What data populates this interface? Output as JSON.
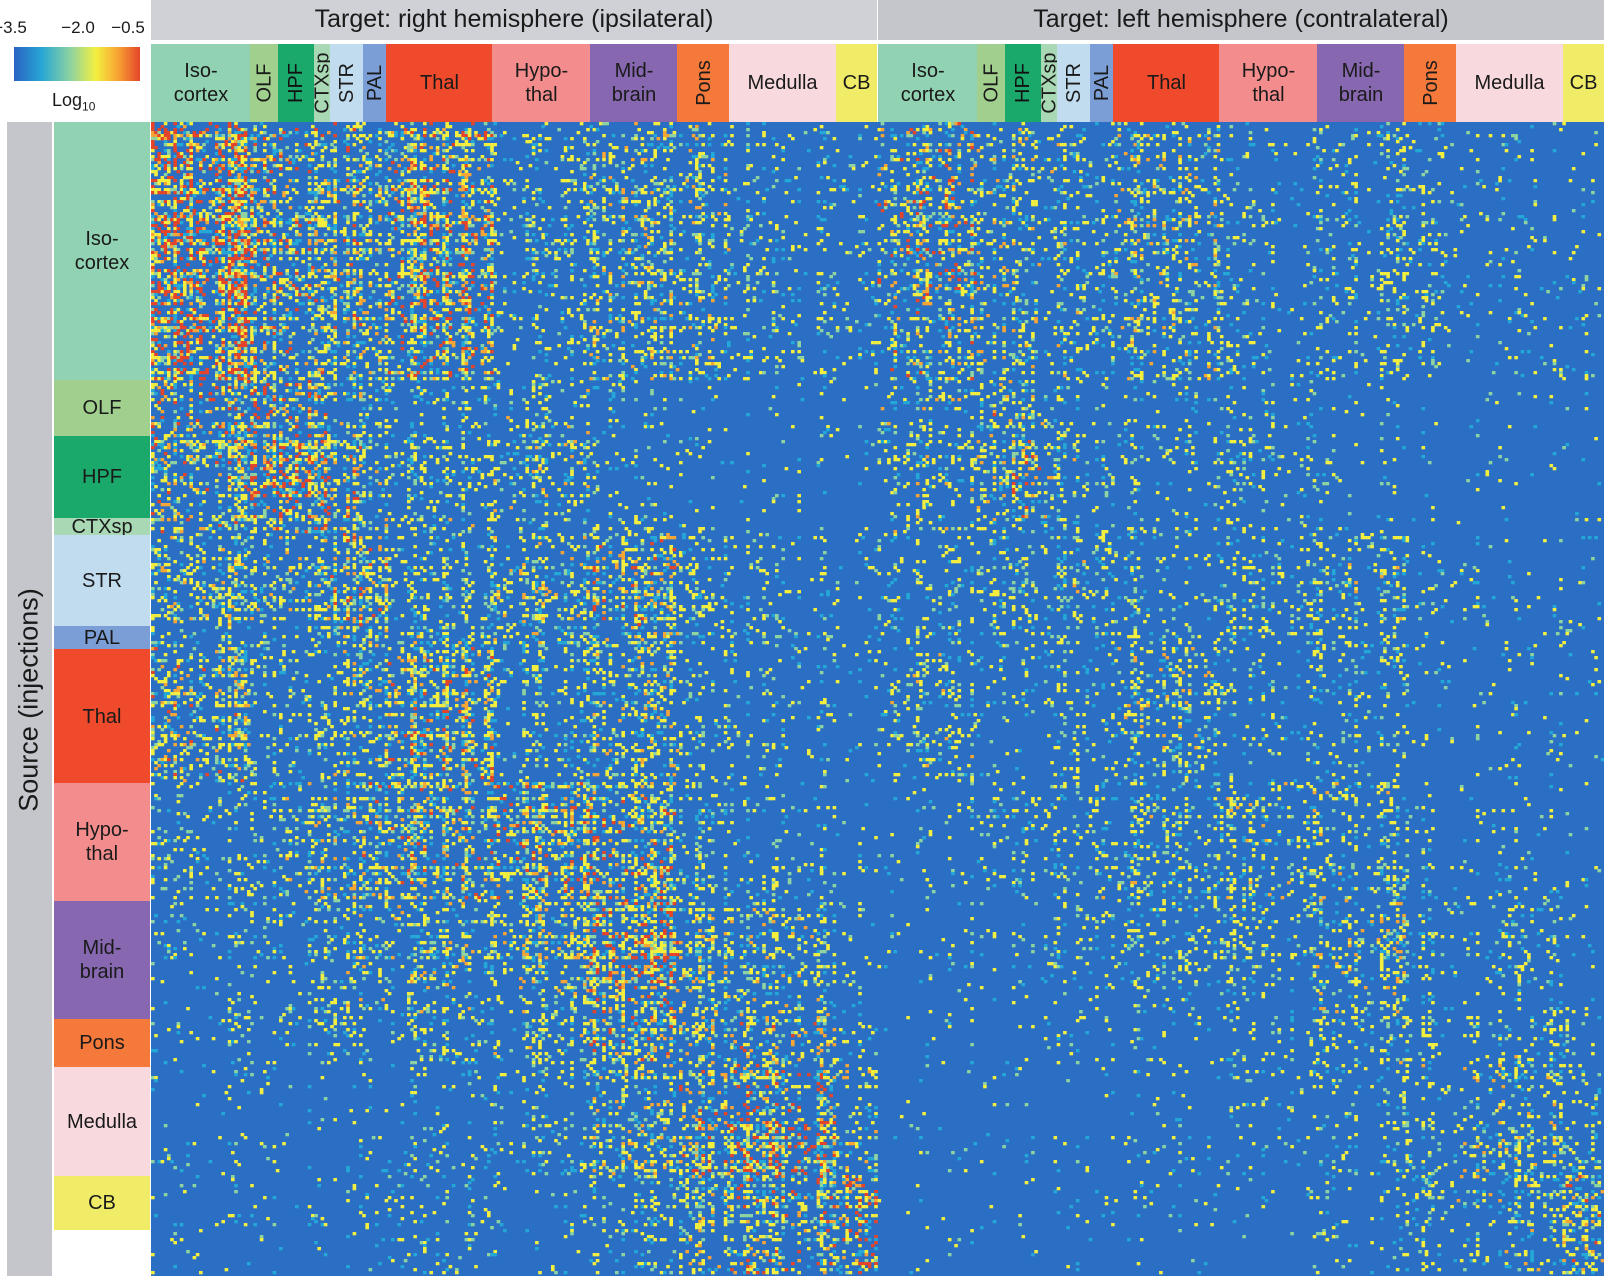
{
  "legend": {
    "ticks": [
      "−3.5",
      "−2.0",
      "−0.5"
    ],
    "label_main": "Log",
    "label_sub": "10",
    "range": [
      -3.5,
      -0.5
    ]
  },
  "hemispheres": {
    "right": "Target: right hemisphere (ipsilateral)",
    "left": "Target: left hemisphere (contralateral)"
  },
  "source_axis": {
    "title": "Source (injections)"
  },
  "regions": [
    {
      "key": "isocortex",
      "label": "Iso-\ncortex",
      "color": "#90d2b1"
    },
    {
      "key": "olf",
      "label": "OLF",
      "color": "#a0cf8e"
    },
    {
      "key": "hpf",
      "label": "HPF",
      "color": "#1aa86b"
    },
    {
      "key": "ctxsp",
      "label": "CTXsp",
      "color": "#a8d9b4"
    },
    {
      "key": "str",
      "label": "STR",
      "color": "#c2dcef"
    },
    {
      "key": "pal",
      "label": "PAL",
      "color": "#7c9ed6"
    },
    {
      "key": "thal",
      "label": "Thal",
      "color": "#ef4a2b"
    },
    {
      "key": "hypothal",
      "label": "Hypo-\nthal",
      "color": "#f38c8c"
    },
    {
      "key": "midbrain",
      "label": "Mid-\nbrain",
      "color": "#8667b0"
    },
    {
      "key": "pons",
      "label": "Pons",
      "color": "#f4793a"
    },
    {
      "key": "medulla",
      "label": "Medulla",
      "color": "#f7d9de"
    },
    {
      "key": "cb",
      "label": "CB",
      "color": "#f1ec67"
    }
  ],
  "colors": {
    "background_blue": "#2b6fc4",
    "scale": [
      "#2b6fc4",
      "#23a8d8",
      "#8fd4a0",
      "#f4ef3f",
      "#f7a534",
      "#e4452a"
    ]
  },
  "chart_data": {
    "type": "heatmap",
    "title": "",
    "x_groups": [
      "Target: right hemisphere (ipsilateral)",
      "Target: left hemisphere (contralateral)"
    ],
    "categories": [
      "Iso-cortex",
      "OLF",
      "HPF",
      "CTXsp",
      "STR",
      "PAL",
      "Thal",
      "Hypo-thal",
      "Mid-brain",
      "Pons",
      "Medulla",
      "CB"
    ],
    "ylabel": "Source (injections)",
    "colorbar": {
      "label": "Log10",
      "min": -3.5,
      "mid": -2.0,
      "max": -0.5
    },
    "target_fractions": [
      0.137,
      0.038,
      0.05,
      0.022,
      0.045,
      0.032,
      0.146,
      0.135,
      0.12,
      0.071,
      0.147,
      0.057
    ],
    "source_fractions": [
      0.224,
      0.048,
      0.071,
      0.015,
      0.079,
      0.02,
      0.116,
      0.102,
      0.102,
      0.042,
      0.094,
      0.047
    ],
    "intensity_matrix": [
      [
        0.8,
        0.55,
        0.5,
        0.4,
        0.45,
        0.3,
        0.55,
        0.2,
        0.35,
        0.3,
        0.15,
        0.1
      ],
      [
        0.5,
        0.75,
        0.5,
        0.5,
        0.35,
        0.2,
        0.2,
        0.25,
        0.1,
        0.05,
        0.05,
        0.05
      ],
      [
        0.45,
        0.6,
        0.8,
        0.55,
        0.4,
        0.25,
        0.2,
        0.3,
        0.1,
        0.05,
        0.05,
        0.05
      ],
      [
        0.45,
        0.45,
        0.5,
        0.5,
        0.4,
        0.25,
        0.3,
        0.2,
        0.15,
        0.1,
        0.05,
        0.05
      ],
      [
        0.3,
        0.25,
        0.25,
        0.3,
        0.5,
        0.4,
        0.2,
        0.3,
        0.4,
        0.15,
        0.1,
        0.05
      ],
      [
        0.2,
        0.2,
        0.25,
        0.2,
        0.3,
        0.35,
        0.3,
        0.3,
        0.35,
        0.15,
        0.1,
        0.05
      ],
      [
        0.4,
        0.15,
        0.15,
        0.2,
        0.3,
        0.25,
        0.45,
        0.2,
        0.3,
        0.15,
        0.1,
        0.05
      ],
      [
        0.15,
        0.2,
        0.3,
        0.3,
        0.3,
        0.4,
        0.4,
        0.5,
        0.45,
        0.2,
        0.15,
        0.05
      ],
      [
        0.1,
        0.1,
        0.15,
        0.15,
        0.25,
        0.25,
        0.3,
        0.35,
        0.6,
        0.35,
        0.3,
        0.1
      ],
      [
        0.1,
        0.05,
        0.1,
        0.1,
        0.15,
        0.1,
        0.15,
        0.25,
        0.45,
        0.35,
        0.4,
        0.2
      ],
      [
        0.05,
        0.05,
        0.05,
        0.05,
        0.05,
        0.05,
        0.1,
        0.15,
        0.35,
        0.4,
        0.6,
        0.3
      ],
      [
        0.05,
        0.05,
        0.05,
        0.05,
        0.05,
        0.05,
        0.1,
        0.05,
        0.15,
        0.35,
        0.45,
        0.7
      ]
    ],
    "contralateral_factor": 0.55
  }
}
